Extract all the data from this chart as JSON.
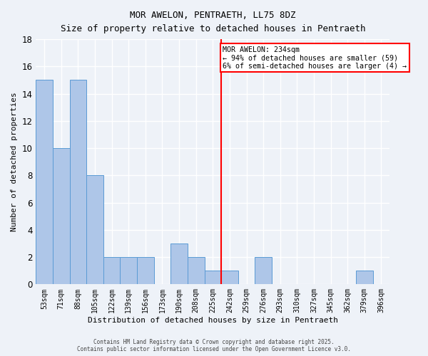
{
  "title": "MOR AWELON, PENTRAETH, LL75 8DZ",
  "subtitle": "Size of property relative to detached houses in Pentraeth",
  "xlabel": "Distribution of detached houses by size in Pentraeth",
  "ylabel": "Number of detached properties",
  "footnote1": "Contains HM Land Registry data © Crown copyright and database right 2025.",
  "footnote2": "Contains public sector information licensed under the Open Government Licence v3.0.",
  "bin_labels": [
    "53sqm",
    "71sqm",
    "88sqm",
    "105sqm",
    "122sqm",
    "139sqm",
    "156sqm",
    "173sqm",
    "190sqm",
    "208sqm",
    "225sqm",
    "242sqm",
    "259sqm",
    "276sqm",
    "293sqm",
    "310sqm",
    "327sqm",
    "345sqm",
    "362sqm",
    "379sqm",
    "396sqm"
  ],
  "bar_values": [
    15,
    10,
    15,
    8,
    2,
    2,
    2,
    0,
    3,
    2,
    1,
    1,
    0,
    2,
    0,
    0,
    0,
    0,
    0,
    1,
    0
  ],
  "bar_color": "#aec6e8",
  "bar_edge_color": "#5a9bd5",
  "property_line_label": "MOR AWELON: 234sqm",
  "annotation_line1": "← 94% of detached houses are smaller (59)",
  "annotation_line2": "6% of semi-detached houses are larger (4) →",
  "ylim": [
    0,
    18
  ],
  "yticks": [
    0,
    2,
    4,
    6,
    8,
    10,
    12,
    14,
    16,
    18
  ],
  "vline_color": "red",
  "background_color": "#eef2f8",
  "grid_color": "#ffffff"
}
